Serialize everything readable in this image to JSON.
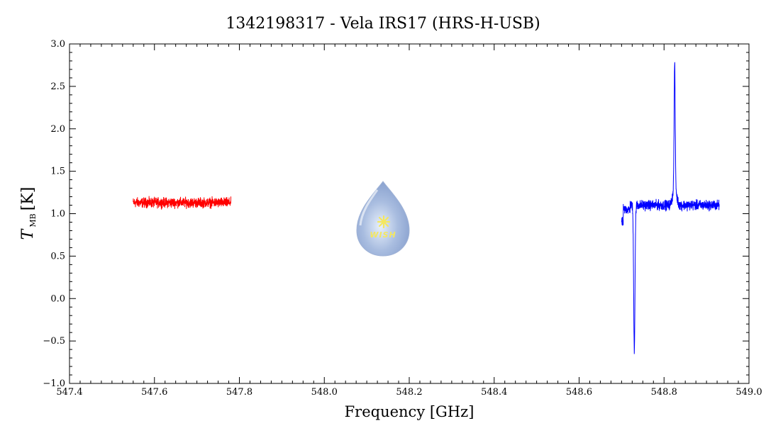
{
  "chart_data": {
    "type": "line",
    "title": "1342198317 - Vela IRS17 (HRS-H-USB)",
    "xlabel": "Frequency [GHz]",
    "ylabel": "T",
    "ylabel_sub": "MB",
    "ylabel_unit": "[K]",
    "xlim": [
      547.4,
      549.0
    ],
    "ylim": [
      -1.0,
      3.0
    ],
    "x_ticks": [
      "547.4",
      "547.6",
      "547.8",
      "548.0",
      "548.2",
      "548.4",
      "548.6",
      "548.8",
      "549.0"
    ],
    "y_ticks": [
      "−1.0",
      "−0.5",
      "0.0",
      "0.5",
      "1.0",
      "1.5",
      "2.0",
      "2.5",
      "3.0"
    ],
    "x_tick_values": [
      547.4,
      547.6,
      547.8,
      548.0,
      548.2,
      548.4,
      548.6,
      548.8,
      549.0
    ],
    "y_tick_values": [
      -1.0,
      -0.5,
      0.0,
      0.5,
      1.0,
      1.5,
      2.0,
      2.5,
      3.0
    ],
    "grid": false,
    "series": [
      {
        "color": "#ff0000",
        "x_range": [
          547.55,
          547.78
        ],
        "baseline": 1.13,
        "noise": 0.05,
        "features": []
      },
      {
        "color": "#0000ff",
        "x_range": [
          548.7,
          548.93
        ],
        "baseline": 1.1,
        "noise": 0.05,
        "features": [
          {
            "type": "absorption",
            "x_center": 548.73,
            "min_value": -0.6
          },
          {
            "type": "emission",
            "x_center": 548.825,
            "peak_value": 2.55
          }
        ]
      }
    ]
  },
  "logo": {
    "text": "WISH"
  }
}
